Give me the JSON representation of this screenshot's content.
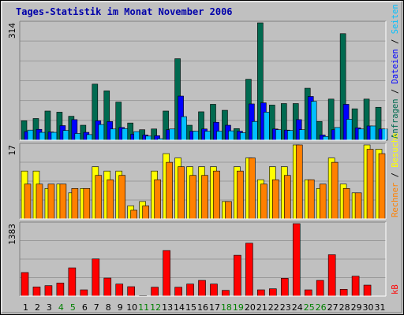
{
  "title": "Tages-Statistik im Monat November 2006",
  "colors": {
    "background": "#c0c0c0",
    "plot_bg": "#c0c0c0",
    "grid": "#9a9a9a",
    "anfragen": "#006a50",
    "dateien": "#0000ff",
    "seiten": "#00c0ff",
    "besuche": "#ffff00",
    "rechner": "#ff8000",
    "kb": "#ff0000",
    "weekday_label": "#000000",
    "weekend_label": "#008000"
  },
  "chart_data": [
    {
      "type": "bar",
      "name": "top",
      "categories": [
        "1",
        "2",
        "3",
        "4",
        "5",
        "6",
        "7",
        "8",
        "9",
        "10",
        "11",
        "12",
        "13",
        "14",
        "15",
        "16",
        "17",
        "18",
        "19",
        "20",
        "21",
        "22",
        "23",
        "24",
        "25",
        "26",
        "27",
        "28",
        "29",
        "30",
        "31"
      ],
      "max_label": "314",
      "ylim": [
        0,
        314
      ],
      "right_label": [
        {
          "text": "Anfragen",
          "color": "#006a50"
        },
        {
          "text": " / ",
          "color": "#000000"
        },
        {
          "text": "Dateien",
          "color": "#0000ff"
        },
        {
          "text": " / ",
          "color": "#000000"
        },
        {
          "text": "Seiten",
          "color": "#00c0ff"
        }
      ],
      "series": [
        {
          "name": "Anfragen",
          "color": "#006a50",
          "values": [
            52,
            58,
            78,
            75,
            64,
            40,
            150,
            132,
            102,
            46,
            28,
            30,
            78,
            218,
            40,
            76,
            96,
            80,
            31,
            163,
            314,
            94,
            98,
            98,
            139,
            50,
            110,
            285,
            84,
            110,
            88
          ]
        },
        {
          "name": "Dateien",
          "color": "#0000ff",
          "values": [
            23,
            29,
            22,
            39,
            55,
            21,
            52,
            50,
            34,
            16,
            14,
            12,
            28,
            118,
            24,
            30,
            48,
            40,
            24,
            97,
            100,
            30,
            27,
            55,
            117,
            14,
            28,
            96,
            33,
            38,
            30
          ]
        },
        {
          "name": "Seiten",
          "color": "#00c0ff",
          "values": [
            27,
            21,
            21,
            26,
            18,
            15,
            42,
            30,
            31,
            23,
            11,
            4,
            30,
            63,
            24,
            24,
            24,
            25,
            20,
            50,
            75,
            28,
            26,
            28,
            104,
            10,
            34,
            56,
            30,
            38,
            30
          ]
        }
      ]
    },
    {
      "type": "bar",
      "name": "middle",
      "categories": [
        "1",
        "2",
        "3",
        "4",
        "5",
        "6",
        "7",
        "8",
        "9",
        "10",
        "11",
        "12",
        "13",
        "14",
        "15",
        "16",
        "17",
        "18",
        "19",
        "20",
        "21",
        "22",
        "23",
        "24",
        "25",
        "26",
        "27",
        "28",
        "29",
        "30",
        "31"
      ],
      "max_label": "17",
      "ylim": [
        0,
        17
      ],
      "right_label": [
        {
          "text": "Rechner",
          "color": "#ff8000"
        },
        {
          "text": " / ",
          "color": "#000000"
        },
        {
          "text": "Besuche",
          "color": "#ffff00"
        }
      ],
      "series": [
        {
          "name": "Besuche",
          "color": "#ffff00",
          "values": [
            11,
            11,
            7,
            8,
            6,
            7,
            12,
            11,
            11,
            3,
            4,
            11,
            15,
            14,
            12,
            12,
            12,
            4,
            12,
            14,
            9,
            12,
            12,
            17,
            9,
            7,
            14,
            8,
            6,
            17,
            16
          ]
        },
        {
          "name": "Rechner",
          "color": "#ff8000",
          "values": [
            8,
            8,
            8,
            8,
            7,
            7,
            10,
            9,
            10,
            2,
            3,
            9,
            13,
            12,
            10,
            10,
            11,
            4,
            11,
            14,
            8,
            9,
            10,
            17,
            9,
            8,
            13,
            7,
            6,
            16,
            15
          ]
        }
      ]
    },
    {
      "type": "bar",
      "name": "bottom",
      "categories": [
        "1",
        "2",
        "3",
        "4",
        "5",
        "6",
        "7",
        "8",
        "9",
        "10",
        "11",
        "12",
        "13",
        "14",
        "15",
        "16",
        "17",
        "18",
        "19",
        "20",
        "21",
        "22",
        "23",
        "24",
        "25",
        "26",
        "27",
        "28",
        "29",
        "30",
        "31"
      ],
      "max_label": "1383",
      "ylim": [
        0,
        1383
      ],
      "right_label": [
        {
          "text": "kB",
          "color": "#ff0000"
        }
      ],
      "series": [
        {
          "name": "kB",
          "color": "#ff0000",
          "values": [
            450,
            175,
            200,
            250,
            540,
            120,
            710,
            345,
            230,
            180,
            10,
            170,
            870,
            170,
            230,
            300,
            230,
            110,
            780,
            1010,
            120,
            140,
            340,
            1383,
            120,
            300,
            790,
            130,
            380,
            210,
            0
          ]
        }
      ]
    }
  ],
  "weekend_days": [
    "4",
    "5",
    "11",
    "12",
    "18",
    "19",
    "25",
    "26"
  ]
}
